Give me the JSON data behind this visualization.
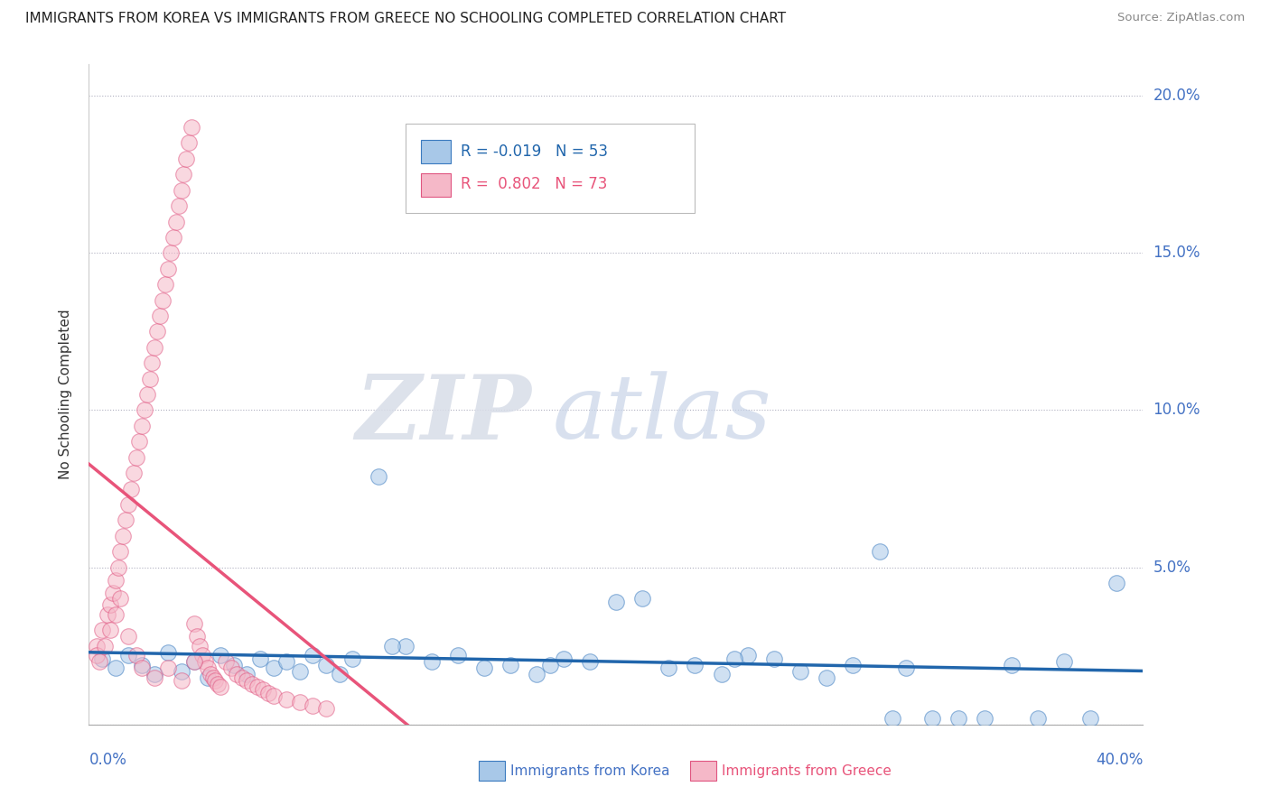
{
  "title": "IMMIGRANTS FROM KOREA VS IMMIGRANTS FROM GREECE NO SCHOOLING COMPLETED CORRELATION CHART",
  "source": "Source: ZipAtlas.com",
  "ylabel": "No Schooling Completed",
  "xlim": [
    0.0,
    0.4
  ],
  "ylim": [
    0.0,
    0.21
  ],
  "korea_fill_color": "#a8c8e8",
  "korea_edge_color": "#3a7abf",
  "greece_fill_color": "#f5b8c8",
  "greece_edge_color": "#e05580",
  "korea_line_color": "#2166ac",
  "greece_line_color": "#e8547a",
  "legend_korea_R": "-0.019",
  "legend_korea_N": "53",
  "legend_greece_R": "0.802",
  "legend_greece_N": "73",
  "watermark_zip": "ZIP",
  "watermark_atlas": "atlas",
  "korea_x": [
    0.005,
    0.01,
    0.015,
    0.02,
    0.025,
    0.03,
    0.035,
    0.04,
    0.045,
    0.05,
    0.055,
    0.06,
    0.065,
    0.07,
    0.075,
    0.08,
    0.085,
    0.09,
    0.095,
    0.1,
    0.11,
    0.12,
    0.13,
    0.14,
    0.15,
    0.16,
    0.17,
    0.18,
    0.19,
    0.2,
    0.21,
    0.22,
    0.23,
    0.24,
    0.25,
    0.26,
    0.27,
    0.28,
    0.29,
    0.3,
    0.31,
    0.32,
    0.33,
    0.34,
    0.35,
    0.36,
    0.37,
    0.38,
    0.39,
    0.115,
    0.175,
    0.245,
    0.305
  ],
  "korea_y": [
    0.021,
    0.018,
    0.022,
    0.019,
    0.016,
    0.023,
    0.017,
    0.02,
    0.015,
    0.022,
    0.019,
    0.016,
    0.021,
    0.018,
    0.02,
    0.017,
    0.022,
    0.019,
    0.016,
    0.021,
    0.079,
    0.025,
    0.02,
    0.022,
    0.018,
    0.019,
    0.016,
    0.021,
    0.02,
    0.039,
    0.04,
    0.018,
    0.019,
    0.016,
    0.022,
    0.021,
    0.017,
    0.015,
    0.019,
    0.055,
    0.018,
    0.002,
    0.002,
    0.002,
    0.019,
    0.002,
    0.02,
    0.002,
    0.045,
    0.025,
    0.019,
    0.021,
    0.002
  ],
  "greece_x": [
    0.003,
    0.005,
    0.007,
    0.008,
    0.009,
    0.01,
    0.011,
    0.012,
    0.013,
    0.014,
    0.015,
    0.016,
    0.017,
    0.018,
    0.019,
    0.02,
    0.021,
    0.022,
    0.023,
    0.024,
    0.025,
    0.026,
    0.027,
    0.028,
    0.029,
    0.03,
    0.031,
    0.032,
    0.033,
    0.034,
    0.035,
    0.036,
    0.037,
    0.038,
    0.039,
    0.04,
    0.041,
    0.042,
    0.043,
    0.044,
    0.045,
    0.046,
    0.047,
    0.048,
    0.049,
    0.05,
    0.052,
    0.054,
    0.056,
    0.058,
    0.06,
    0.062,
    0.064,
    0.066,
    0.068,
    0.07,
    0.075,
    0.08,
    0.085,
    0.09,
    0.003,
    0.004,
    0.006,
    0.008,
    0.01,
    0.012,
    0.015,
    0.018,
    0.02,
    0.025,
    0.03,
    0.035,
    0.04
  ],
  "greece_y": [
    0.025,
    0.03,
    0.035,
    0.038,
    0.042,
    0.046,
    0.05,
    0.055,
    0.06,
    0.065,
    0.07,
    0.075,
    0.08,
    0.085,
    0.09,
    0.095,
    0.1,
    0.105,
    0.11,
    0.115,
    0.12,
    0.125,
    0.13,
    0.135,
    0.14,
    0.145,
    0.15,
    0.155,
    0.16,
    0.165,
    0.17,
    0.175,
    0.18,
    0.185,
    0.19,
    0.032,
    0.028,
    0.025,
    0.022,
    0.02,
    0.018,
    0.016,
    0.015,
    0.014,
    0.013,
    0.012,
    0.02,
    0.018,
    0.016,
    0.015,
    0.014,
    0.013,
    0.012,
    0.011,
    0.01,
    0.009,
    0.008,
    0.007,
    0.006,
    0.005,
    0.022,
    0.02,
    0.025,
    0.03,
    0.035,
    0.04,
    0.028,
    0.022,
    0.018,
    0.015,
    0.018,
    0.014,
    0.02
  ]
}
